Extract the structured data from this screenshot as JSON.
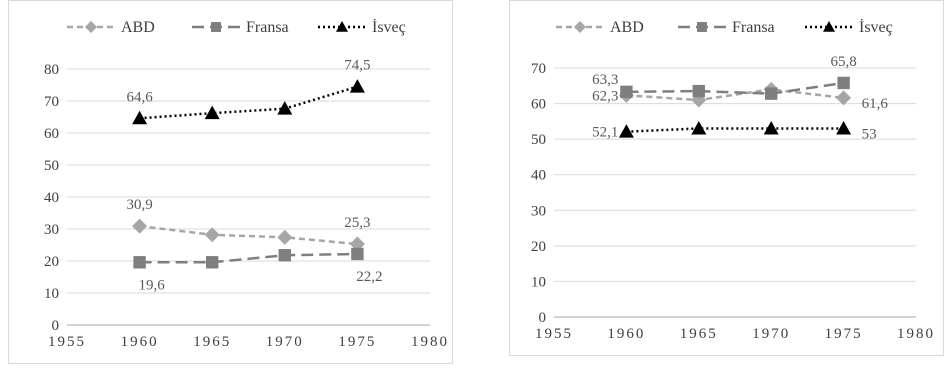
{
  "chart_data": [
    {
      "type": "line",
      "x": [
        1960,
        1965,
        1970,
        1975
      ],
      "xlim": [
        1955,
        1980
      ],
      "xticks": [
        "1955",
        "1960",
        "1965",
        "1970",
        "1975",
        "1980"
      ],
      "ylim": [
        0,
        80
      ],
      "yticks": [
        "0",
        "10",
        "20",
        "30",
        "40",
        "50",
        "60",
        "70",
        "80"
      ],
      "grid": true,
      "legend_position": "top",
      "series": [
        {
          "name": "ABD",
          "values": [
            30.9,
            28.2,
            27.4,
            25.3
          ],
          "color": "#a6a6a6",
          "marker": "diamond",
          "dash": "dashed"
        },
        {
          "name": "Fransa",
          "values": [
            19.6,
            19.6,
            21.8,
            22.2
          ],
          "color": "#7f7f7f",
          "marker": "square",
          "dash": "longdash"
        },
        {
          "name": "İsveç",
          "values": [
            64.6,
            66.2,
            67.6,
            74.5
          ],
          "color": "#000000",
          "marker": "triangle",
          "dash": "dotted"
        }
      ],
      "data_labels": [
        {
          "series": "İsveç",
          "index": 0,
          "text": "64,6",
          "pos": "above"
        },
        {
          "series": "İsveç",
          "index": 3,
          "text": "74,5",
          "pos": "above"
        },
        {
          "series": "ABD",
          "index": 0,
          "text": "30,9",
          "pos": "above"
        },
        {
          "series": "ABD",
          "index": 3,
          "text": "25,3",
          "pos": "above"
        },
        {
          "series": "Fransa",
          "index": 0,
          "text": "19,6",
          "pos": "below"
        },
        {
          "series": "Fransa",
          "index": 3,
          "text": "22,2",
          "pos": "below"
        }
      ]
    },
    {
      "type": "line",
      "x": [
        1960,
        1965,
        1970,
        1975
      ],
      "xlim": [
        1955,
        1980
      ],
      "xticks": [
        "1955",
        "1960",
        "1965",
        "1970",
        "1975",
        "1980"
      ],
      "ylim": [
        0,
        70
      ],
      "yticks": [
        "0",
        "10",
        "20",
        "30",
        "40",
        "50",
        "60",
        "70"
      ],
      "grid": true,
      "legend_position": "top",
      "series": [
        {
          "name": "ABD",
          "values": [
            62.3,
            61.0,
            64.0,
            61.6
          ],
          "color": "#a6a6a6",
          "marker": "diamond",
          "dash": "dashed"
        },
        {
          "name": "Fransa",
          "values": [
            63.3,
            63.5,
            62.8,
            65.8
          ],
          "color": "#7f7f7f",
          "marker": "square",
          "dash": "longdash"
        },
        {
          "name": "İsveç",
          "values": [
            52.1,
            53.0,
            53.0,
            53.0
          ],
          "color": "#000000",
          "marker": "triangle",
          "dash": "dotted"
        }
      ],
      "data_labels": [
        {
          "series": "Fransa",
          "index": 0,
          "text": "63,3",
          "pos": "above-left"
        },
        {
          "series": "ABD",
          "index": 0,
          "text": "62,3",
          "pos": "left"
        },
        {
          "series": "İsveç",
          "index": 0,
          "text": "52,1",
          "pos": "left"
        },
        {
          "series": "Fransa",
          "index": 3,
          "text": "65,8",
          "pos": "above"
        },
        {
          "series": "ABD",
          "index": 3,
          "text": "61,6",
          "pos": "right"
        },
        {
          "series": "İsveç",
          "index": 3,
          "text": "53",
          "pos": "right"
        }
      ]
    }
  ]
}
